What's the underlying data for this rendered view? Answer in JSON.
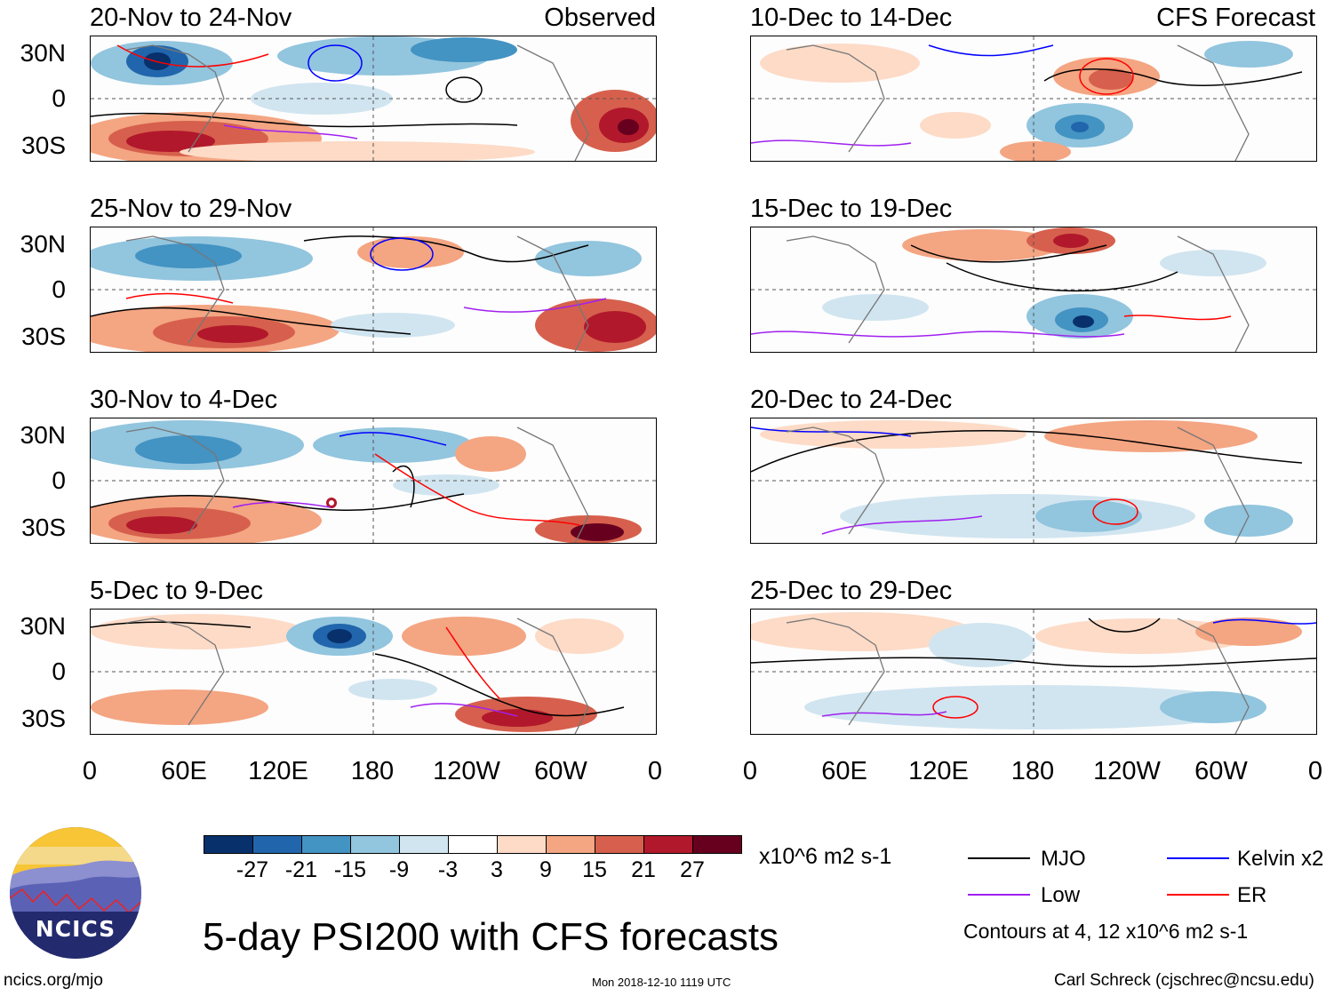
{
  "header": {
    "observed_label": "Observed",
    "forecast_label": "CFS Forecast"
  },
  "panels_left": [
    {
      "title": "20-Nov to 24-Nov"
    },
    {
      "title": "25-Nov to 29-Nov"
    },
    {
      "title": "30-Nov to 4-Dec"
    },
    {
      "title": "5-Dec to 9-Dec"
    }
  ],
  "panels_right": [
    {
      "title": "10-Dec to 14-Dec"
    },
    {
      "title": "15-Dec to 19-Dec"
    },
    {
      "title": "20-Dec to 24-Dec"
    },
    {
      "title": "25-Dec to 29-Dec"
    }
  ],
  "lat_labels": [
    "30N",
    "0",
    "30S"
  ],
  "lon_labels": [
    "0",
    "60E",
    "120E",
    "180",
    "120W",
    "60W",
    "0"
  ],
  "colorbar": {
    "colors": [
      "#08306b",
      "#2166ac",
      "#4393c3",
      "#92c5de",
      "#d1e5f0",
      "#ffffff",
      "#fddbc7",
      "#f4a582",
      "#d6604d",
      "#b2182b",
      "#67001f"
    ],
    "ticks": [
      "-27",
      "-21",
      "-15",
      "-9",
      "-3",
      "3",
      "9",
      "15",
      "21",
      "27"
    ],
    "units": "x10^6 m2 s-1"
  },
  "legend": {
    "items": [
      {
        "label": "MJO",
        "color": "#000000"
      },
      {
        "label": "Kelvin x2",
        "color": "#0000ff"
      },
      {
        "label": "Low",
        "color": "#a020f0"
      },
      {
        "label": "ER",
        "color": "#ff0000"
      }
    ],
    "contour_note": "Contours at 4, 12 x10^6 m2 s-1"
  },
  "logo": {
    "text": "NCICS"
  },
  "footer": {
    "title": "5-day PSI200 with CFS forecasts",
    "url": "ncics.org/mjo",
    "timestamp": "Mon 2018-12-10 1119 UTC",
    "credit": "Carl Schreck (cjschrec@ncsu.edu)"
  }
}
